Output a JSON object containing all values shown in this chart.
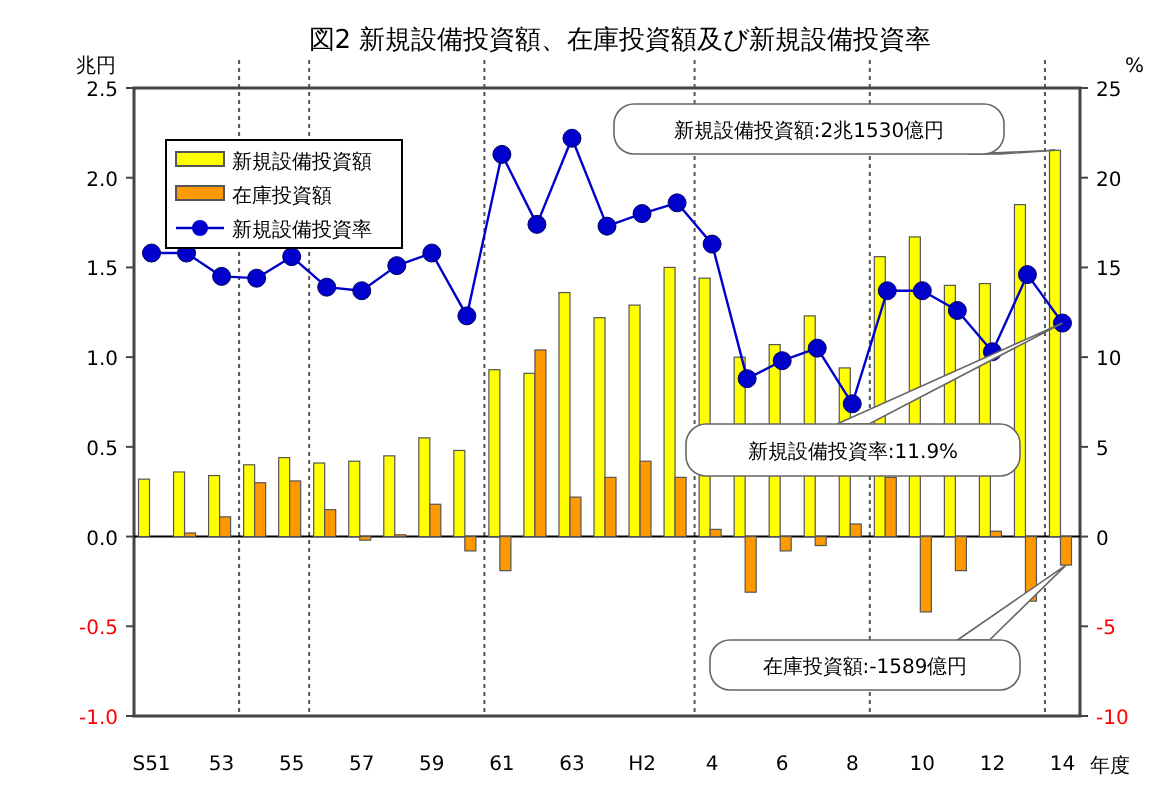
{
  "chart_data": {
    "type": "bar",
    "title": "図2 新規設備投資額、在庫投資額及び新規設備投資率",
    "xlabel": "年度",
    "ylabel": "兆円",
    "y2label": "%",
    "categories": [
      "S51",
      null,
      "53",
      null,
      "55",
      null,
      "57",
      null,
      "59",
      null,
      "61",
      null,
      "63",
      null,
      "H2",
      null,
      "4",
      null,
      "6",
      null,
      "8",
      null,
      "10",
      null,
      "12",
      null,
      "14"
    ],
    "series": [
      {
        "name": "新規設備投資額",
        "color": "#ffff00",
        "values": [
          0.32,
          0.36,
          0.34,
          0.4,
          0.44,
          0.41,
          0.42,
          0.45,
          0.55,
          0.48,
          0.93,
          0.91,
          1.36,
          1.22,
          1.29,
          1.5,
          1.44,
          1.0,
          1.07,
          1.23,
          0.94,
          1.56,
          1.67,
          1.4,
          1.41,
          1.85,
          2.153
        ]
      },
      {
        "name": "在庫投資額",
        "color": "#ff9900",
        "values": [
          0,
          0.02,
          0.11,
          0.3,
          0.31,
          0.15,
          -0.02,
          0.01,
          0.18,
          -0.08,
          -0.19,
          1.04,
          0.22,
          0.33,
          0.42,
          0.33,
          0.04,
          -0.31,
          -0.08,
          -0.05,
          0.07,
          0.33,
          -0.42,
          -0.19,
          0.03,
          -0.36,
          -0.1589
        ]
      },
      {
        "name": "新規設備投資率",
        "type": "line",
        "axis": "y2",
        "color": "#0000cc",
        "values": [
          15.8,
          15.8,
          14.5,
          14.4,
          15.6,
          13.9,
          13.7,
          15.1,
          15.8,
          12.3,
          21.3,
          17.4,
          22.2,
          17.3,
          18.0,
          18.6,
          16.3,
          8.8,
          9.8,
          10.5,
          7.4,
          13.7,
          13.7,
          12.6,
          10.3,
          14.6,
          11.9
        ]
      }
    ],
    "marker": "circle",
    "line_style": "solid",
    "ylim": [
      -1.0,
      2.5
    ],
    "yticks": [
      {
        "value": -1.0,
        "label": "-1.0"
      },
      {
        "value": -0.5,
        "label": "-0.5"
      },
      {
        "value": 0,
        "label": "0.0"
      },
      {
        "value": 0.5,
        "label": "0.5"
      },
      {
        "value": 1.0,
        "label": "1.0"
      },
      {
        "value": 1.5,
        "label": "1.5"
      },
      {
        "value": 2.0,
        "label": "2.0"
      },
      {
        "value": 2.5,
        "label": "2.5"
      }
    ],
    "y2lim": [
      -10,
      25
    ],
    "y2ticks": [
      -10,
      -5,
      0,
      5,
      10,
      15,
      20,
      25
    ],
    "annotations": [
      {
        "text": "新規設備投資額:2兆1530億円",
        "x": "14",
        "y": 2.153
      },
      "新規設備投資率:11.9%",
      "在庫投資額:-1589億円"
    ],
    "legend": "top left",
    "grid": false
  }
}
